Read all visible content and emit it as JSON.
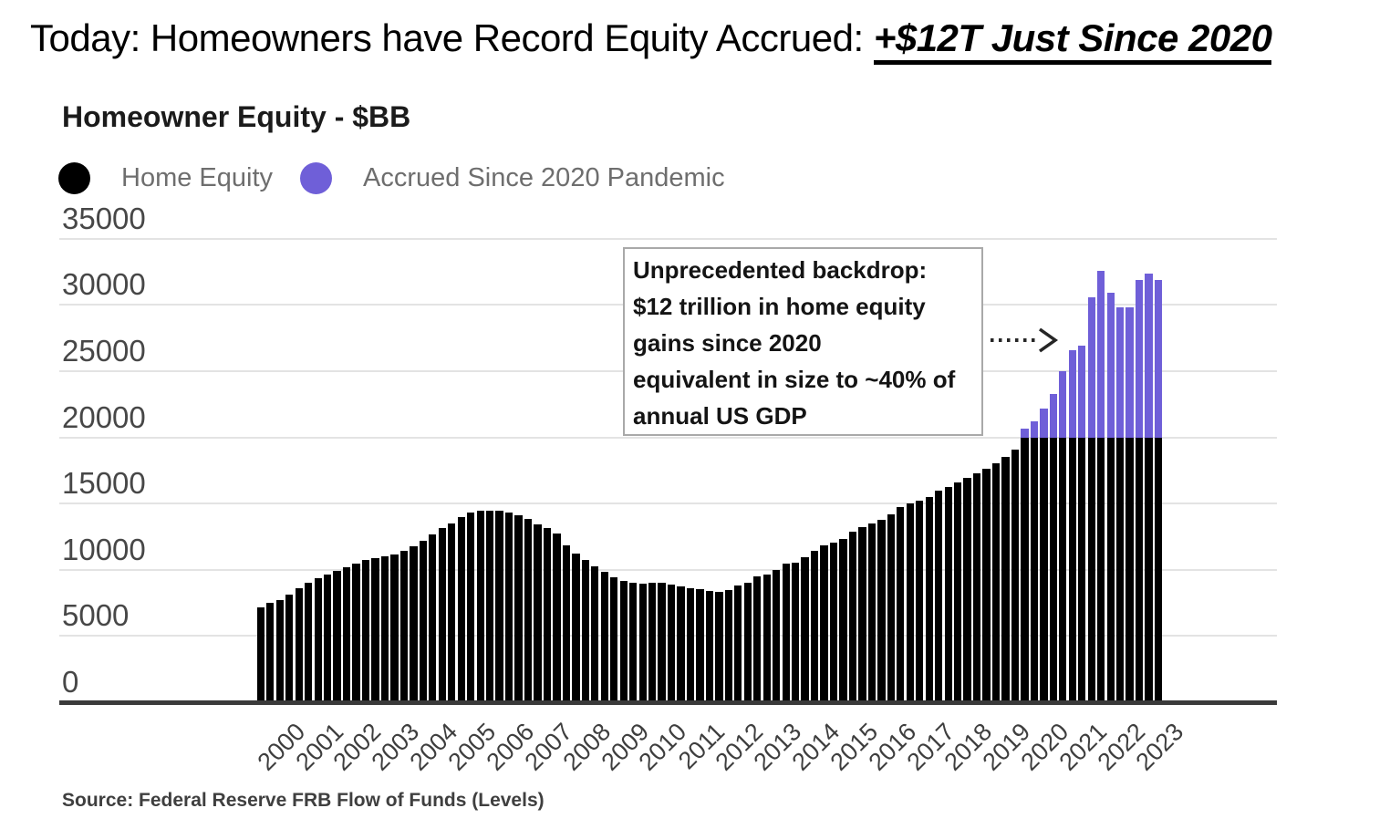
{
  "title": {
    "prefix": "Today: Homeowners have Record Equity Accrued: ",
    "highlight": "+$12T Just Since 2020"
  },
  "chart": {
    "title": "Homeowner Equity - $BB",
    "legend": [
      {
        "label": "Home Equity",
        "color": "#000000"
      },
      {
        "label": "Accrued Since 2020 Pandemic",
        "color": "#6f5fd8"
      }
    ],
    "annotation": {
      "lines": [
        "Unprecedented backdrop:",
        "$12 trillion in home equity",
        "gains since 2020",
        "equivalent in size to ~40% of",
        "annual US GDP"
      ]
    },
    "source": "Source: Federal Reserve FRB Flow of Funds (Levels)"
  },
  "chart_data": {
    "type": "bar",
    "stacked": true,
    "title": "Homeowner Equity - $BB",
    "unit": "$BB (billions of US dollars)",
    "frequency": "quarterly",
    "x_start": "2000Q1",
    "x_end": "2023Q3",
    "ylim": [
      0,
      35000
    ],
    "y_ticks": [
      0,
      5000,
      10000,
      15000,
      20000,
      25000,
      30000,
      35000
    ],
    "x_year_labels": [
      "2000",
      "2001",
      "2002",
      "2003",
      "2004",
      "2005",
      "2006",
      "2007",
      "2008",
      "2009",
      "2010",
      "2011",
      "2012",
      "2013",
      "2014",
      "2015",
      "2016",
      "2017",
      "2018",
      "2019",
      "2020",
      "2021",
      "2022",
      "2023"
    ],
    "grid": "horizontal",
    "legend_position": "top-left",
    "series": [
      {
        "name": "Home Equity",
        "color": "#000000",
        "role": "base segment (total value before 2020Q1; capped at pandemic_base_level from 2020Q1 on)"
      },
      {
        "name": "Accrued Since 2020 Pandemic",
        "color": "#6f5fd8",
        "role": "top segment = total minus pandemic_base_level, from 2020Q1 on"
      }
    ],
    "pandemic_base_level": 19950,
    "accrued_start_index": 80,
    "total_equity_by_quarter": [
      7150,
      7500,
      7730,
      8140,
      8600,
      9015,
      9335,
      9635,
      9930,
      10210,
      10480,
      10710,
      10895,
      11010,
      11170,
      11400,
      11750,
      12200,
      12660,
      13180,
      13480,
      13985,
      14300,
      14440,
      14440,
      14440,
      14300,
      14145,
      13825,
      13460,
      13140,
      12725,
      11855,
      11240,
      10710,
      10250,
      9865,
      9450,
      9175,
      9010,
      8940,
      8990,
      9010,
      8900,
      8715,
      8600,
      8555,
      8370,
      8330,
      8490,
      8830,
      9010,
      9520,
      9630,
      10020,
      10435,
      10550,
      10940,
      11400,
      11815,
      12040,
      12315,
      12845,
      13190,
      13465,
      13760,
      14220,
      14745,
      15020,
      15250,
      15530,
      15985,
      16285,
      16600,
      16950,
      17300,
      17650,
      18050,
      18500,
      19050,
      20660,
      21230,
      22150,
      23300,
      25020,
      26550,
      26950,
      30600,
      32550,
      30950,
      29850,
      29800,
      31900,
      32400,
      31900
    ]
  }
}
